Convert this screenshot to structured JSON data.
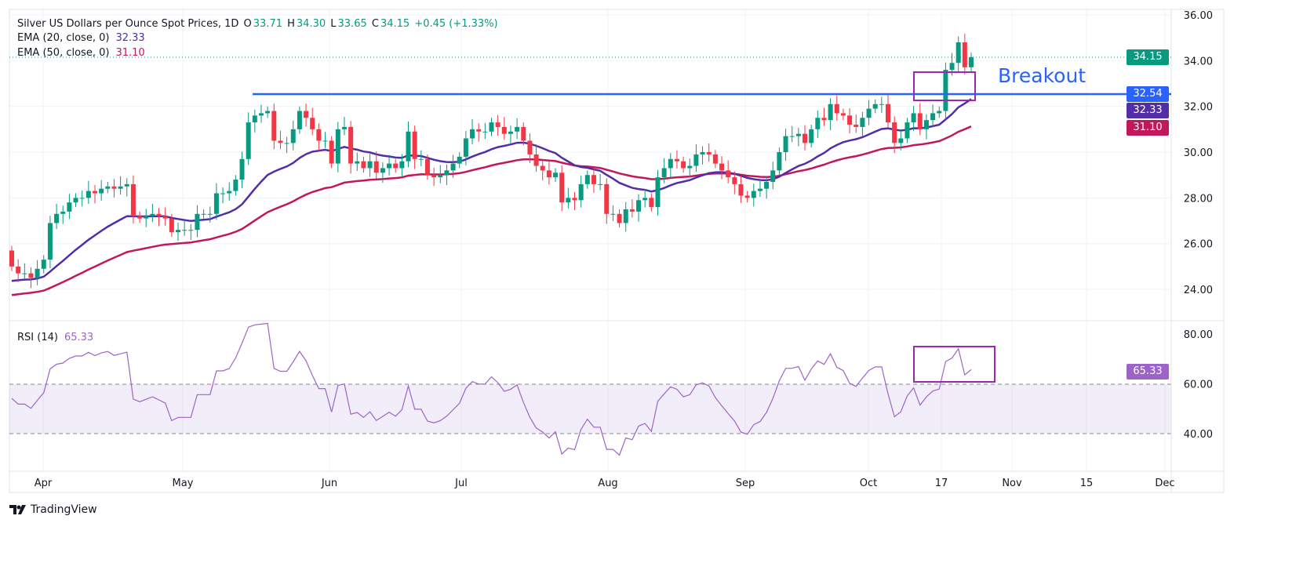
{
  "header": {
    "symbol": "Silver US Dollars per Ounce Spot Prices, 1D",
    "o_label": "O",
    "open": "33.71",
    "h_label": "H",
    "high": "34.30",
    "l_label": "L",
    "low": "33.65",
    "c_label": "C",
    "close": "34.15",
    "change": "+0.45 (+1.33%)"
  },
  "ema20": {
    "label": "EMA (20, close, 0)",
    "value": "32.33",
    "color": "#512da8"
  },
  "ema50": {
    "label": "EMA (50, close, 0)",
    "value": "31.10",
    "color": "#c2185b"
  },
  "rsi": {
    "label": "RSI (14)",
    "value": "65.33",
    "color": "#9c64c8"
  },
  "annotation": {
    "text": "Breakout",
    "level": "32.54",
    "color": "#2962ff"
  },
  "price_tags": {
    "last": "34.15",
    "breakout": "32.54",
    "ema20": "32.33",
    "ema50": "31.10"
  },
  "logo": "TradingView",
  "chart_data": {
    "type": "candlestick",
    "colors": {
      "up": "#089981",
      "down": "#f23645"
    },
    "price_axis": {
      "ticks": [
        "36.00",
        "34.00",
        "32.00",
        "30.00",
        "28.00",
        "26.00",
        "24.00"
      ],
      "range": [
        23.3,
        36.2
      ]
    },
    "rsi_axis": {
      "ticks": [
        "80.00",
        "60.00",
        "40.00"
      ],
      "band": [
        40,
        60
      ]
    },
    "time_axis": [
      "Apr",
      "May",
      "Jun",
      "Jul",
      "Aug",
      "Sep",
      "Oct",
      "17",
      "Nov",
      "15",
      "Dec"
    ],
    "first_open": 25.7,
    "close": [
      25.0,
      24.7,
      24.7,
      24.5,
      24.9,
      25.3,
      26.9,
      27.3,
      27.4,
      27.8,
      28.0,
      28.0,
      28.3,
      28.2,
      28.4,
      28.5,
      28.4,
      28.5,
      28.6,
      27.2,
      27.1,
      27.2,
      27.3,
      27.2,
      27.1,
      26.5,
      26.6,
      26.6,
      26.6,
      27.3,
      27.3,
      27.3,
      28.2,
      28.2,
      28.3,
      28.8,
      29.7,
      31.3,
      31.6,
      31.7,
      31.8,
      30.5,
      30.4,
      30.4,
      31.0,
      31.8,
      31.5,
      31.0,
      30.5,
      30.5,
      29.5,
      31.0,
      31.1,
      29.5,
      29.6,
      29.3,
      29.6,
      29.1,
      29.3,
      29.5,
      29.3,
      29.6,
      30.9,
      29.7,
      29.7,
      29.0,
      28.9,
      29.0,
      29.2,
      29.5,
      29.8,
      30.6,
      31.0,
      30.9,
      30.9,
      31.3,
      31.1,
      30.8,
      30.9,
      31.1,
      30.5,
      29.9,
      29.4,
      29.2,
      28.9,
      29.1,
      27.8,
      28.0,
      27.9,
      28.6,
      29.0,
      28.6,
      28.6,
      27.3,
      27.3,
      26.9,
      27.5,
      27.4,
      27.9,
      28.0,
      27.6,
      28.9,
      29.3,
      29.7,
      29.6,
      29.3,
      29.4,
      29.9,
      30.0,
      29.9,
      29.5,
      29.2,
      28.9,
      28.6,
      28.1,
      28.0,
      28.3,
      28.4,
      28.7,
      29.2,
      30.0,
      30.7,
      30.7,
      30.8,
      30.4,
      31.0,
      31.5,
      31.4,
      32.1,
      31.7,
      31.6,
      31.2,
      31.1,
      31.5,
      31.9,
      32.1,
      32.1,
      31.3,
      30.4,
      30.6,
      31.3,
      31.7,
      31.0,
      31.4,
      31.7,
      31.8,
      33.6,
      33.9,
      34.8,
      33.71,
      34.15
    ]
  }
}
